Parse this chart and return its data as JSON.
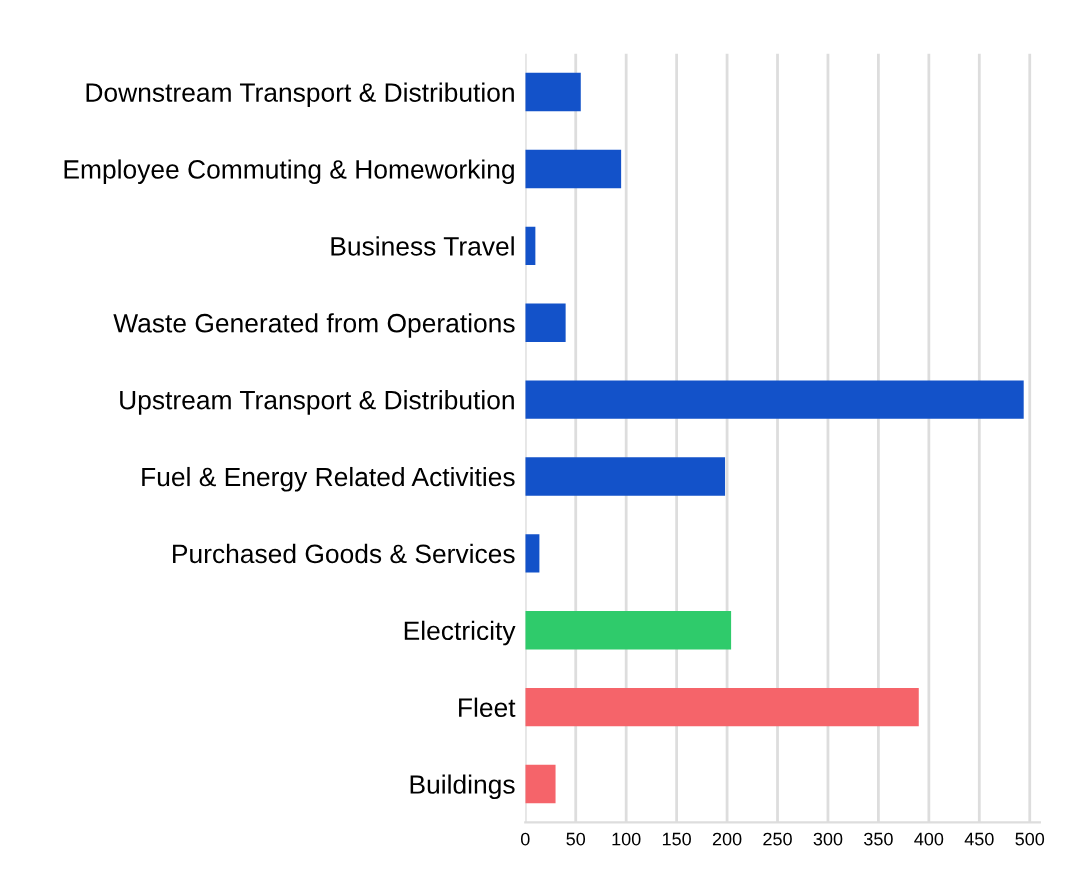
{
  "chart_data": {
    "type": "bar",
    "orientation": "horizontal",
    "categories": [
      "Downstream Transport & Distribution",
      "Employee Commuting & Homeworking",
      "Business Travel",
      "Waste Generated from Operations",
      "Upstream Transport & Distribution",
      "Fuel & Energy Related Activities",
      "Purchased Goods & Services",
      "Electricity",
      "Fleet",
      "Buildings"
    ],
    "values": [
      55,
      95,
      10,
      40,
      494,
      198,
      14,
      204,
      390,
      30
    ],
    "colors": [
      "#1352c9",
      "#1352c9",
      "#1352c9",
      "#1352c9",
      "#1352c9",
      "#1352c9",
      "#1352c9",
      "#2fcb6b",
      "#f5646a",
      "#f5646a"
    ],
    "xlim": [
      0,
      510
    ],
    "xticks": [
      0,
      50,
      100,
      150,
      200,
      250,
      300,
      350,
      400,
      450,
      500
    ],
    "grid": "x"
  }
}
